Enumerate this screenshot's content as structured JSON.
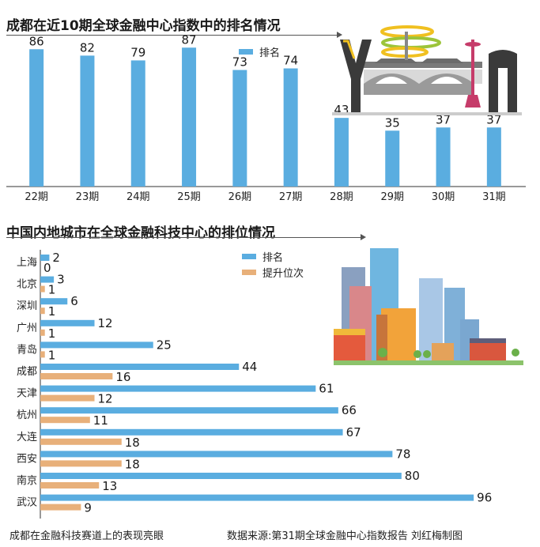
{
  "chart_data": [
    {
      "type": "bar",
      "title": "成都在近10期全球金融中心指数中的排名情况",
      "categories": [
        "22期",
        "23期",
        "24期",
        "25期",
        "26期",
        "27期",
        "28期",
        "29期",
        "30期",
        "31期"
      ],
      "series": [
        {
          "name": "排名",
          "values": [
            86,
            82,
            79,
            87,
            73,
            74,
            43,
            35,
            37,
            37
          ]
        }
      ],
      "ylim": [
        0,
        100
      ],
      "legend_position": "top",
      "colors": {
        "bar": "#5aade0"
      }
    },
    {
      "type": "bar",
      "orientation": "horizontal",
      "title": "中国内地城市在全球金融科技中心的排位情况",
      "categories": [
        "上海",
        "北京",
        "深圳",
        "广州",
        "青岛",
        "成都",
        "天津",
        "杭州",
        "大连",
        "西安",
        "南京",
        "武汉"
      ],
      "series": [
        {
          "name": "排名",
          "values": [
            2,
            3,
            6,
            12,
            25,
            44,
            61,
            66,
            67,
            78,
            80,
            96
          ]
        },
        {
          "name": "提升位次",
          "values": [
            0,
            1,
            1,
            1,
            1,
            16,
            12,
            11,
            18,
            18,
            13,
            9
          ]
        }
      ],
      "xlim": [
        0,
        100
      ],
      "legend_position": "top-right",
      "colors": {
        "rank": "#5aade0",
        "rise": "#e8b07a"
      }
    }
  ],
  "footer": {
    "left": "成都在金融科技赛道上的表现亮眼",
    "right": "数据来源:第31期全球金融中心指数报告  刘红梅制图"
  },
  "icons": [
    "city-gate-illustration-icon",
    "city-skyline-illustration-icon"
  ]
}
